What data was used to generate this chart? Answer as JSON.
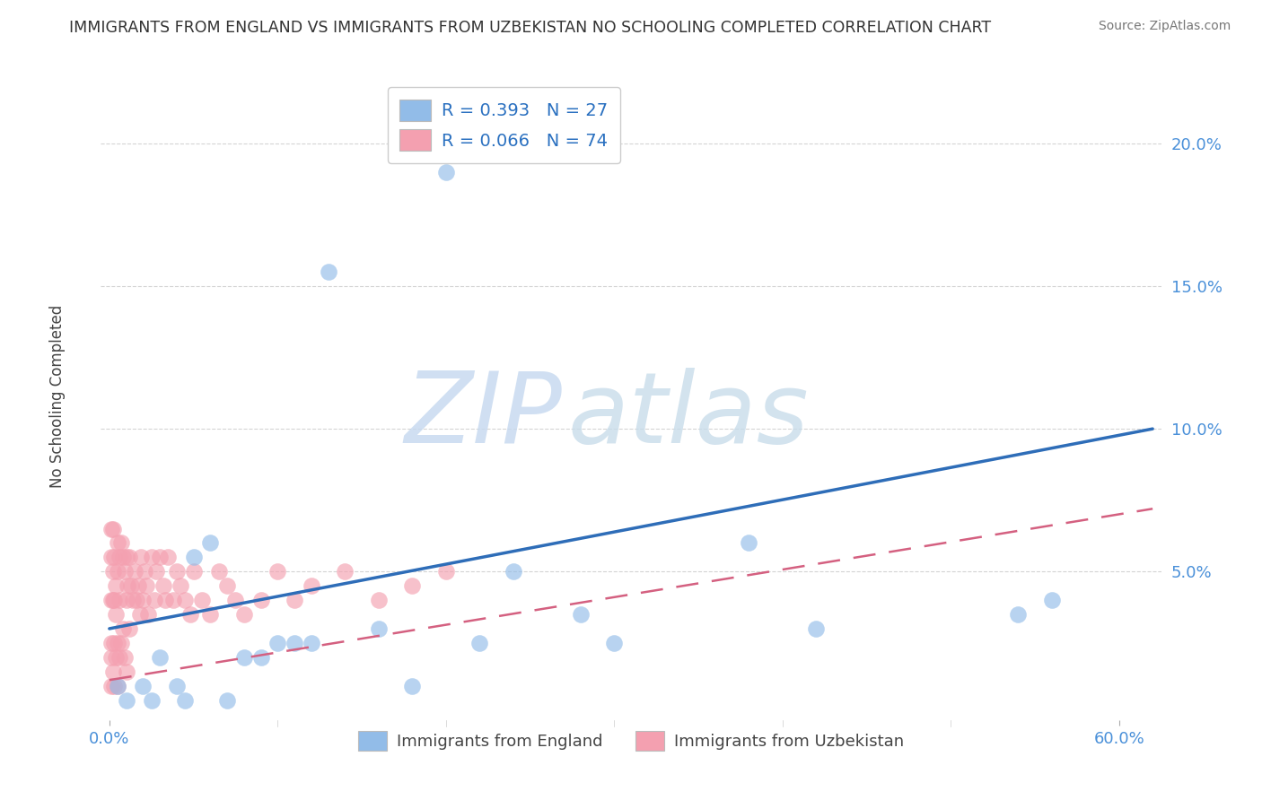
{
  "title": "IMMIGRANTS FROM ENGLAND VS IMMIGRANTS FROM UZBEKISTAN NO SCHOOLING COMPLETED CORRELATION CHART",
  "source": "Source: ZipAtlas.com",
  "xlabel_england": "Immigrants from England",
  "xlabel_uzbekistan": "Immigrants from Uzbekistan",
  "ylabel": "No Schooling Completed",
  "xlim": [
    -0.005,
    0.625
  ],
  "ylim": [
    -0.002,
    0.225
  ],
  "ytick_positions": [
    0.05,
    0.1,
    0.15,
    0.2
  ],
  "ytick_labels": [
    "5.0%",
    "10.0%",
    "15.0%",
    "20.0%"
  ],
  "xtick_positions": [
    0.0,
    0.6
  ],
  "xtick_labels": [
    "0.0%",
    "60.0%"
  ],
  "england_color": "#92bce8",
  "uzbekistan_color": "#f4a0b0",
  "england_line_color": "#2e6db8",
  "uzbekistan_line_color": "#d46080",
  "england_R": 0.393,
  "england_N": 27,
  "uzbekistan_R": 0.066,
  "uzbekistan_N": 74,
  "eng_line_x0": 0.0,
  "eng_line_x1": 0.62,
  "eng_line_y0": 0.03,
  "eng_line_y1": 0.1,
  "uzb_line_x0": 0.0,
  "uzb_line_x1": 0.62,
  "uzb_line_y0": 0.012,
  "uzb_line_y1": 0.072,
  "england_scatter_x": [
    0.005,
    0.01,
    0.02,
    0.025,
    0.03,
    0.04,
    0.045,
    0.05,
    0.06,
    0.07,
    0.08,
    0.09,
    0.1,
    0.11,
    0.12,
    0.13,
    0.16,
    0.18,
    0.2,
    0.22,
    0.24,
    0.28,
    0.3,
    0.38,
    0.42,
    0.54,
    0.56
  ],
  "england_scatter_y": [
    0.01,
    0.005,
    0.01,
    0.005,
    0.02,
    0.01,
    0.005,
    0.055,
    0.06,
    0.005,
    0.02,
    0.02,
    0.025,
    0.025,
    0.025,
    0.155,
    0.03,
    0.01,
    0.19,
    0.025,
    0.05,
    0.035,
    0.025,
    0.06,
    0.03,
    0.035,
    0.04
  ],
  "uzbekistan_scatter_x": [
    0.001,
    0.001,
    0.001,
    0.001,
    0.001,
    0.001,
    0.002,
    0.002,
    0.002,
    0.002,
    0.003,
    0.003,
    0.003,
    0.003,
    0.004,
    0.004,
    0.004,
    0.005,
    0.005,
    0.005,
    0.005,
    0.006,
    0.006,
    0.006,
    0.007,
    0.007,
    0.008,
    0.008,
    0.009,
    0.009,
    0.01,
    0.01,
    0.01,
    0.011,
    0.012,
    0.012,
    0.013,
    0.014,
    0.015,
    0.016,
    0.017,
    0.018,
    0.019,
    0.02,
    0.021,
    0.022,
    0.023,
    0.025,
    0.027,
    0.028,
    0.03,
    0.032,
    0.033,
    0.035,
    0.038,
    0.04,
    0.042,
    0.045,
    0.048,
    0.05,
    0.055,
    0.06,
    0.065,
    0.07,
    0.075,
    0.08,
    0.09,
    0.1,
    0.11,
    0.12,
    0.14,
    0.16,
    0.18,
    0.2
  ],
  "uzbekistan_scatter_y": [
    0.02,
    0.04,
    0.055,
    0.065,
    0.025,
    0.01,
    0.04,
    0.065,
    0.05,
    0.015,
    0.055,
    0.04,
    0.025,
    0.01,
    0.045,
    0.035,
    0.02,
    0.06,
    0.05,
    0.025,
    0.01,
    0.055,
    0.04,
    0.02,
    0.06,
    0.025,
    0.055,
    0.03,
    0.05,
    0.02,
    0.055,
    0.04,
    0.015,
    0.045,
    0.055,
    0.03,
    0.045,
    0.04,
    0.05,
    0.04,
    0.045,
    0.035,
    0.055,
    0.04,
    0.05,
    0.045,
    0.035,
    0.055,
    0.04,
    0.05,
    0.055,
    0.045,
    0.04,
    0.055,
    0.04,
    0.05,
    0.045,
    0.04,
    0.035,
    0.05,
    0.04,
    0.035,
    0.05,
    0.045,
    0.04,
    0.035,
    0.04,
    0.05,
    0.04,
    0.045,
    0.05,
    0.04,
    0.045,
    0.05
  ],
  "watermark_zip": "ZIP",
  "watermark_atlas": "atlas",
  "background_color": "#ffffff",
  "grid_color": "#d0d0d0"
}
